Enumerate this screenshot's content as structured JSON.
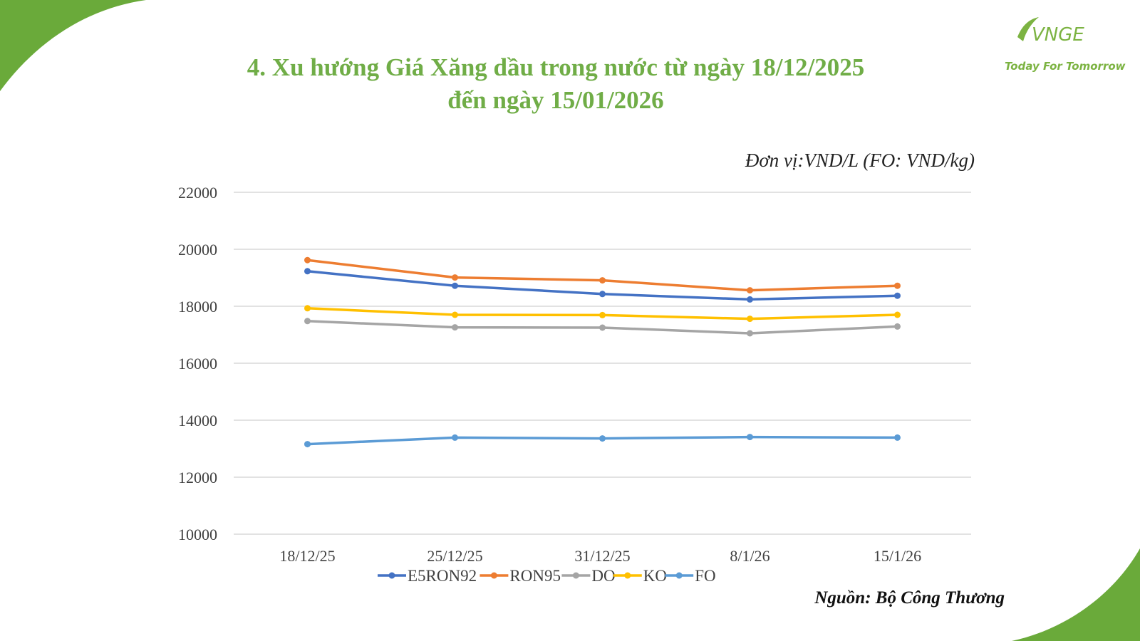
{
  "slide": {
    "title_line1": "4. Xu hướng Giá Xăng dầu trong nước từ ngày 18/12/2025",
    "title_line2": "đến ngày 15/01/2026",
    "unit_note": "Đơn vị:VND/L (FO: VND/kg)",
    "source_note": "Nguồn: Bộ Công Thương",
    "logo_mark": "VNGE",
    "logo_tagline": "Today For Tomorrow",
    "accent_color": "#70ad47"
  },
  "chart_data": {
    "type": "line",
    "categories": [
      "18/12/25",
      "25/12/25",
      "31/12/25",
      "8/1/26",
      "15/1/26"
    ],
    "ylim": [
      10000,
      22000
    ],
    "yticks": [
      10000,
      12000,
      14000,
      16000,
      18000,
      20000,
      22000
    ],
    "grid": true,
    "legend_position": "bottom",
    "series": [
      {
        "name": "E5RON92",
        "color": "#4472c4",
        "values": [
          19230,
          18720,
          18430,
          18240,
          18370
        ]
      },
      {
        "name": "RON95",
        "color": "#ed7d31",
        "values": [
          19620,
          19010,
          18910,
          18560,
          18720
        ]
      },
      {
        "name": "DO",
        "color": "#a5a5a5",
        "values": [
          17480,
          17260,
          17250,
          17050,
          17290
        ]
      },
      {
        "name": "KO",
        "color": "#ffc000",
        "values": [
          17930,
          17700,
          17690,
          17560,
          17700
        ]
      },
      {
        "name": "FO",
        "color": "#5b9bd5",
        "values": [
          13160,
          13390,
          13360,
          13410,
          13390
        ]
      }
    ]
  }
}
